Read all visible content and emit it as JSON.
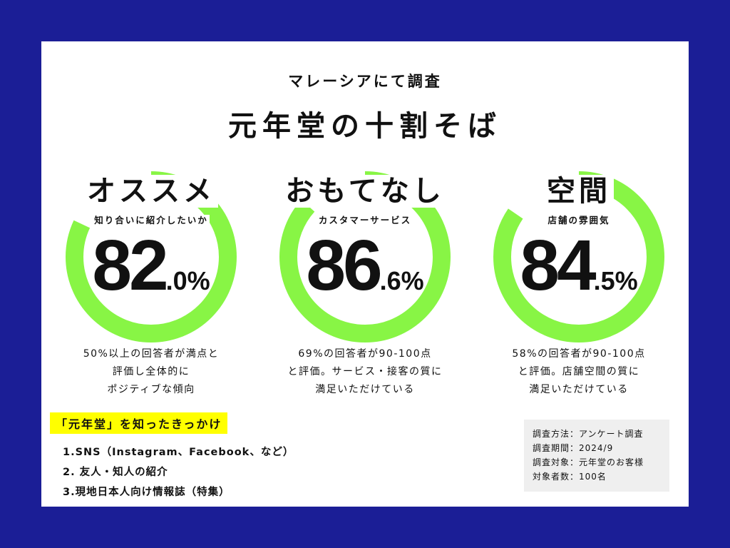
{
  "header": {
    "pre_title": "マレーシアにて調査",
    "title": "元年堂の十割そば"
  },
  "metrics": [
    {
      "heading": "オススメ",
      "subheading": "知り合いに紹介したいか",
      "value_int": "82",
      "value_dec": ".0%",
      "percent": 82.0,
      "desc": [
        "50%以上の回答者が満点と",
        "評価し全体的に",
        "ポジティブな傾向"
      ]
    },
    {
      "heading": "おもてなし",
      "subheading": "カスタマーサービス",
      "value_int": "86",
      "value_dec": ".6%",
      "percent": 86.6,
      "desc": [
        "69%の回答者が90-100点",
        "と評価。サービス・接客の質に",
        "満足いただけている"
      ]
    },
    {
      "heading": "空間",
      "subheading": "店舗の雰囲気",
      "value_int": "84",
      "value_dec": ".5%",
      "percent": 84.5,
      "desc": [
        "58%の回答者が90-100点",
        "と評価。店舗空間の質に",
        "満足いただけている"
      ]
    }
  ],
  "chance": {
    "title": "「元年堂」を知ったきっかけ",
    "items": [
      "1.SNS（Instagram、Facebook、など）",
      "2. 友人・知人の紹介",
      "3.現地日本人向け情報誌（特集）"
    ]
  },
  "survey": {
    "lines": [
      "調査方法：アンケート調査",
      "調査期間：2024/9",
      "調査対象：元年堂のお客様",
      "対象者数：100名"
    ]
  },
  "colors": {
    "background": "#1b1e96",
    "card": "#ffffff",
    "ring": "#88f545",
    "highlight": "#ffff00",
    "survey_box": "#efefef"
  }
}
